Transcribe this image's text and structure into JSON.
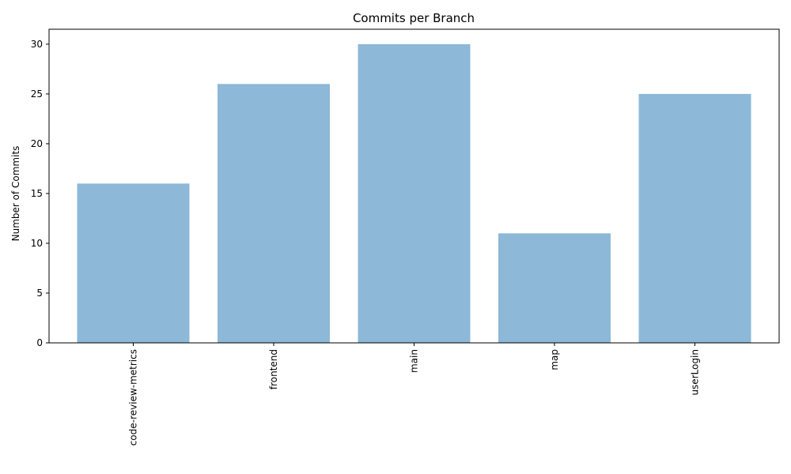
{
  "chart_data": {
    "type": "bar",
    "title": "Commits per Branch",
    "xlabel": "",
    "ylabel": "Number of Commits",
    "categories": [
      "code-review-metrics",
      "frontend",
      "main",
      "map",
      "userLogin"
    ],
    "values": [
      16,
      26,
      30,
      11,
      25
    ],
    "ylim": [
      0,
      31.5
    ],
    "yticks": [
      0,
      5,
      10,
      15,
      20,
      25,
      30
    ],
    "grid": false,
    "legend": "none",
    "bar_color": "#8db8d8",
    "x_tick_rotation": "vertical"
  }
}
